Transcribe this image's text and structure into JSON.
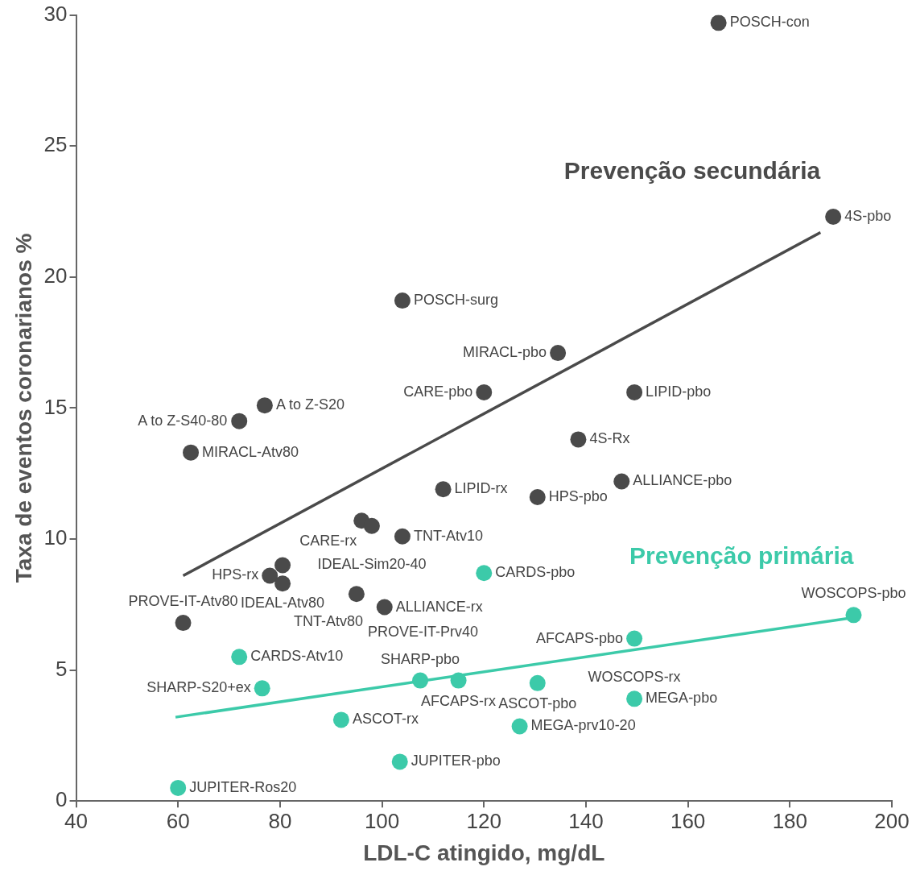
{
  "chart_data": {
    "type": "scatter",
    "xlabel": "LDL-C atingido, mg/dL",
    "ylabel": "Taxa de eventos coronarianos %",
    "xlim": [
      40,
      200
    ],
    "xticks": [
      40,
      60,
      80,
      100,
      120,
      140,
      160,
      180,
      200
    ],
    "ylim": [
      0,
      30
    ],
    "yticks": [
      0,
      5,
      10,
      15,
      20,
      25,
      30
    ],
    "grid": false,
    "legend": false,
    "marker": "circle",
    "series": [
      {
        "name": "Prevenção secundária",
        "color": "#4a4a4a",
        "x": [
          166,
          188.5,
          104,
          134.5,
          120,
          149.5,
          77,
          72,
          62.5,
          138.5,
          147,
          112,
          130.5,
          96,
          98,
          80.5,
          78,
          80.5,
          104,
          95,
          100.5,
          61
        ],
        "values": [
          29.7,
          22.3,
          19.1,
          17.1,
          15.6,
          15.6,
          15.1,
          14.5,
          13.3,
          13.8,
          12.2,
          11.9,
          11.6,
          10.7,
          10.5,
          9.0,
          8.6,
          8.3,
          10.1,
          7.9,
          7.4,
          6.8
        ]
      },
      {
        "name": "Prevenção primária",
        "color": "#3ccaa9",
        "x": [
          120,
          192.5,
          149.5,
          72,
          107.5,
          115,
          130.5,
          76.5,
          149.5,
          92,
          127,
          103.5,
          60
        ],
        "values": [
          8.7,
          7.1,
          6.2,
          5.5,
          4.6,
          4.6,
          4.5,
          4.3,
          3.9,
          3.1,
          2.85,
          1.5,
          0.5
        ]
      },
      {
        "type": "line",
        "marker": "none",
        "color": "#4a4a4a",
        "x": [
          61,
          186
        ],
        "values": [
          8.6,
          21.7
        ]
      },
      {
        "type": "line",
        "marker": "none",
        "color": "#3ccaa9",
        "x": [
          59.5,
          192.5
        ],
        "values": [
          3.2,
          7.0
        ]
      }
    ],
    "annotations": [
      {
        "text": "POSCH-con",
        "x": 166,
        "y": 29.7
      },
      {
        "text": "4S-pbo",
        "x": 188.5,
        "y": 22.3
      },
      {
        "text": "POSCH-surg",
        "x": 104,
        "y": 19.1
      },
      {
        "text": "MIRACL-pbo",
        "x": 134.5,
        "y": 17.1
      },
      {
        "text": "CARE-pbo",
        "x": 120,
        "y": 15.6
      },
      {
        "text": "LIPID-pbo",
        "x": 149.5,
        "y": 15.6
      },
      {
        "text": "A to Z-S20",
        "x": 77,
        "y": 15.1
      },
      {
        "text": "A to Z-S40-80",
        "x": 72,
        "y": 14.5
      },
      {
        "text": "MIRACL-Atv80",
        "x": 62.5,
        "y": 13.3
      },
      {
        "text": "4S-Rx",
        "x": 138.5,
        "y": 13.8
      },
      {
        "text": "ALLIANCE-pbo",
        "x": 147,
        "y": 12.2
      },
      {
        "text": "LIPID-rx",
        "x": 112,
        "y": 11.9
      },
      {
        "text": "HPS-pbo",
        "x": 130.5,
        "y": 11.6
      },
      {
        "text": "CARE-rx",
        "x": 96,
        "y": 10.7
      },
      {
        "text": "IDEAL-Sim20-40",
        "x": 98,
        "y": 10.5
      },
      {
        "text": "IDEAL-Atv80",
        "x": 80.5,
        "y": 9.0
      },
      {
        "text": "HPS-rx",
        "x": 78,
        "y": 8.6
      },
      {
        "text": "TNT-Atv80",
        "x": 80.5,
        "y": 8.3
      },
      {
        "text": "TNT-Atv10",
        "x": 104,
        "y": 10.1
      },
      {
        "text": "PROVE-IT-Prv40",
        "x": 95,
        "y": 7.9
      },
      {
        "text": "ALLIANCE-rx",
        "x": 100.5,
        "y": 7.4
      },
      {
        "text": "PROVE-IT-Atv80",
        "x": 61,
        "y": 6.8
      },
      {
        "text": "CARDS-pbo",
        "x": 120,
        "y": 8.7
      },
      {
        "text": "WOSCOPS-pbo",
        "x": 192.5,
        "y": 7.1
      },
      {
        "text": "AFCAPS-pbo",
        "x": 149.5,
        "y": 6.2
      },
      {
        "text": "CARDS-Atv10",
        "x": 72,
        "y": 5.5
      },
      {
        "text": "SHARP-pbo",
        "x": 107.5,
        "y": 4.6
      },
      {
        "text": "AFCAPS-rx",
        "x": 115,
        "y": 4.6
      },
      {
        "text": "ASCOT-pbo",
        "x": 130.5,
        "y": 4.5
      },
      {
        "text": "SHARP-S20+ex",
        "x": 76.5,
        "y": 4.3
      },
      {
        "text": "MEGA-pbo",
        "x": 149.5,
        "y": 3.9
      },
      {
        "text": "WOSCOPS-rx",
        "x": 149.5,
        "y": 3.9
      },
      {
        "text": "ASCOT-rx",
        "x": 92,
        "y": 3.1
      },
      {
        "text": "MEGA-prv10-20",
        "x": 127,
        "y": 2.85
      },
      {
        "text": "JUPITER-pbo",
        "x": 103.5,
        "y": 1.5
      },
      {
        "text": "JUPITER-Ros20",
        "x": 60,
        "y": 0.5
      }
    ]
  }
}
